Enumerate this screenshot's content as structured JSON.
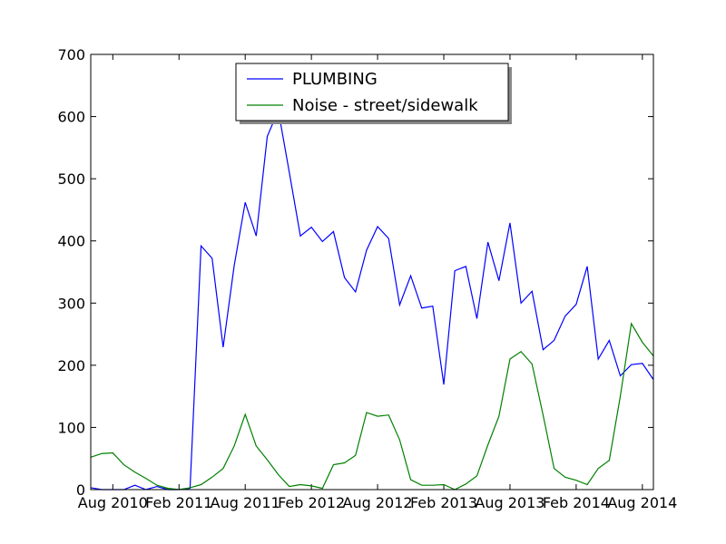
{
  "chart_data": {
    "type": "line",
    "x": [
      "2010-06",
      "2010-07",
      "2010-08",
      "2010-09",
      "2010-10",
      "2010-11",
      "2010-12",
      "2011-01",
      "2011-02",
      "2011-03",
      "2011-04",
      "2011-05",
      "2011-06",
      "2011-07",
      "2011-08",
      "2011-09",
      "2011-10",
      "2011-11",
      "2011-12",
      "2012-01",
      "2012-02",
      "2012-03",
      "2012-04",
      "2012-05",
      "2012-06",
      "2012-07",
      "2012-08",
      "2012-09",
      "2012-10",
      "2012-11",
      "2012-12",
      "2013-01",
      "2013-02",
      "2013-03",
      "2013-04",
      "2013-05",
      "2013-06",
      "2013-07",
      "2013-08",
      "2013-09",
      "2013-10",
      "2013-11",
      "2013-12",
      "2014-01",
      "2014-02",
      "2014-03",
      "2014-04",
      "2014-05",
      "2014-06",
      "2014-07",
      "2014-08",
      "2014-09"
    ],
    "series": [
      {
        "name": "PLUMBING",
        "color": "#0000ff",
        "values": [
          3,
          0,
          0,
          0,
          7,
          0,
          5,
          0,
          0,
          2,
          392,
          372,
          229,
          360,
          462,
          408,
          568,
          610,
          510,
          408,
          422,
          399,
          415,
          341,
          318,
          385,
          423,
          404,
          297,
          344,
          292,
          295,
          169,
          352,
          359,
          275,
          398,
          336,
          429,
          300,
          319,
          225,
          240,
          279,
          298,
          359,
          210,
          240,
          183,
          201,
          203,
          177
        ]
      },
      {
        "name": "Noise - street/sidewalk",
        "color": "#008000",
        "values": [
          52,
          58,
          59,
          40,
          28,
          18,
          7,
          2,
          0,
          3,
          8,
          20,
          34,
          70,
          121,
          70,
          48,
          24,
          5,
          8,
          6,
          2,
          40,
          43,
          55,
          124,
          118,
          120,
          80,
          16,
          7,
          7,
          8,
          0,
          9,
          22,
          72,
          118,
          210,
          222,
          202,
          120,
          34,
          20,
          15,
          8,
          34,
          47,
          150,
          267,
          237,
          215
        ]
      }
    ],
    "xlim": [
      "2010-06",
      "2014-09"
    ],
    "xticks": [
      {
        "value": "2010-08",
        "label": "Aug 2010"
      },
      {
        "value": "2011-02",
        "label": "Feb 2011"
      },
      {
        "value": "2011-08",
        "label": "Aug 2011"
      },
      {
        "value": "2012-02",
        "label": "Feb 2012"
      },
      {
        "value": "2012-08",
        "label": "Aug 2012"
      },
      {
        "value": "2013-02",
        "label": "Feb 2013"
      },
      {
        "value": "2013-08",
        "label": "Aug 2013"
      },
      {
        "value": "2014-02",
        "label": "Feb 2014"
      },
      {
        "value": "2014-08",
        "label": "Aug 2014"
      }
    ],
    "ylim": [
      0,
      700
    ],
    "yticks": [
      0,
      100,
      200,
      300,
      400,
      500,
      600,
      700
    ],
    "grid": false,
    "legend": "upper center"
  }
}
